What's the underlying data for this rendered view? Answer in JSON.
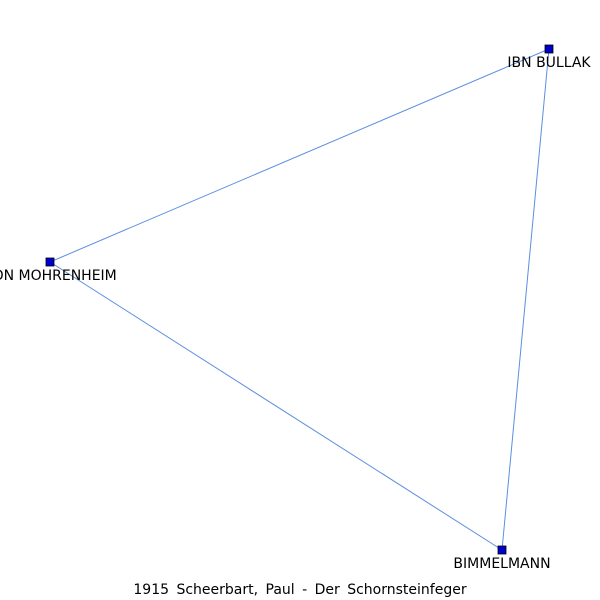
{
  "caption": "1915 Scheerbart, Paul - Der Schornsteinfeger",
  "colors": {
    "edge": "#5b8fe0",
    "node_fill": "#0000cc",
    "node_stroke": "#000000",
    "background": "#ffffff"
  },
  "nodes": [
    {
      "id": "ibn-bullak",
      "label": "IBN BULLAK"
    },
    {
      "id": "von-mohrenheim",
      "label": "VON MOHRENHEIM"
    },
    {
      "id": "bimmelmann",
      "label": "BIMMELMANN"
    }
  ],
  "edges": [
    {
      "source": "ibn-bullak",
      "target": "von-mohrenheim"
    },
    {
      "source": "ibn-bullak",
      "target": "bimmelmann"
    },
    {
      "source": "von-mohrenheim",
      "target": "bimmelmann"
    }
  ]
}
